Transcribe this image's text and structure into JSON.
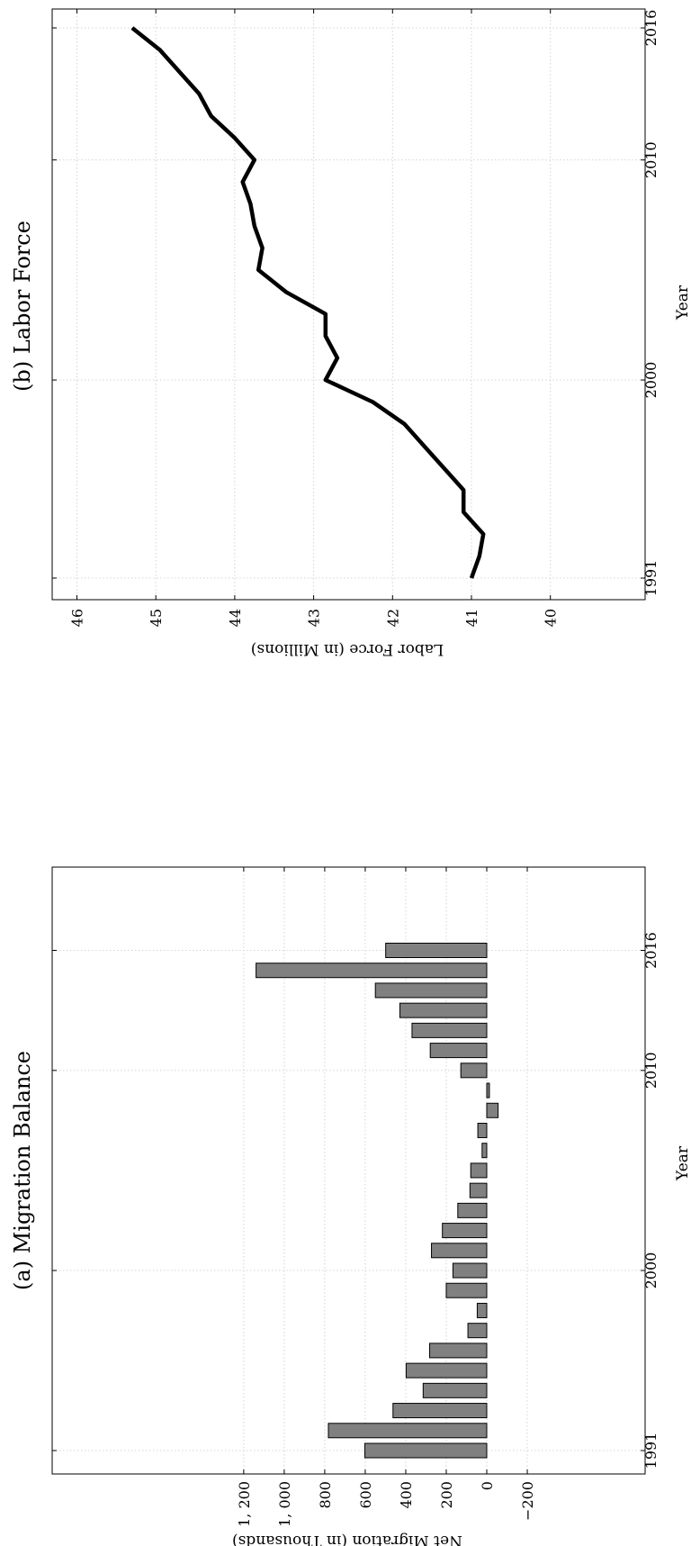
{
  "chart_data": [
    {
      "type": "bar",
      "title": "(a) Migration Balance",
      "xlabel": "Year",
      "ylabel": "Net Migration (in Thousands)",
      "categories": [
        1991,
        1992,
        1993,
        1994,
        1995,
        1996,
        1997,
        1998,
        1999,
        2000,
        2001,
        2002,
        2003,
        2004,
        2005,
        2006,
        2007,
        2008,
        2009,
        2010,
        2011,
        2012,
        2013,
        2014,
        2015,
        2016
      ],
      "values": [
        602,
        782,
        463,
        314,
        398,
        282,
        93,
        47,
        200,
        167,
        273,
        219,
        143,
        83,
        79,
        23,
        44,
        -56,
        -13,
        128,
        279,
        369,
        429,
        550,
        1139,
        499
      ],
      "x_ticks": [
        "1991",
        "2000",
        "2010",
        "2016"
      ],
      "y_ticks": [
        "−200",
        "0",
        "200",
        "400",
        "600",
        "800",
        "1, 000",
        "1, 200"
      ],
      "ylim": [
        -300,
        1200
      ],
      "bar_color": "#808080",
      "grid": true
    },
    {
      "type": "line",
      "title": "(b) Labor Force",
      "xlabel": "Year",
      "ylabel": "Labor Force (in Millions)",
      "x": [
        1991,
        1992,
        1993,
        1994,
        1995,
        1996,
        1997,
        1998,
        1999,
        2000,
        2001,
        2002,
        2003,
        2004,
        2005,
        2006,
        2007,
        2008,
        2009,
        2010,
        2011,
        2012,
        2013,
        2014,
        2015,
        2016
      ],
      "y": [
        41.0,
        40.9,
        40.85,
        41.1,
        41.1,
        41.35,
        41.6,
        41.85,
        42.25,
        42.85,
        42.7,
        42.85,
        42.85,
        43.35,
        43.7,
        43.65,
        43.75,
        43.8,
        43.9,
        43.75,
        44.0,
        44.3,
        44.45,
        44.7,
        44.95,
        45.3
      ],
      "x_ticks": [
        "1991",
        "2000",
        "2010",
        "2016"
      ],
      "y_ticks": [
        "40",
        "41",
        "42",
        "43",
        "44",
        "45",
        "46"
      ],
      "ylim": [
        39.5,
        46.5
      ],
      "line_color": "#000000",
      "grid": true
    }
  ]
}
